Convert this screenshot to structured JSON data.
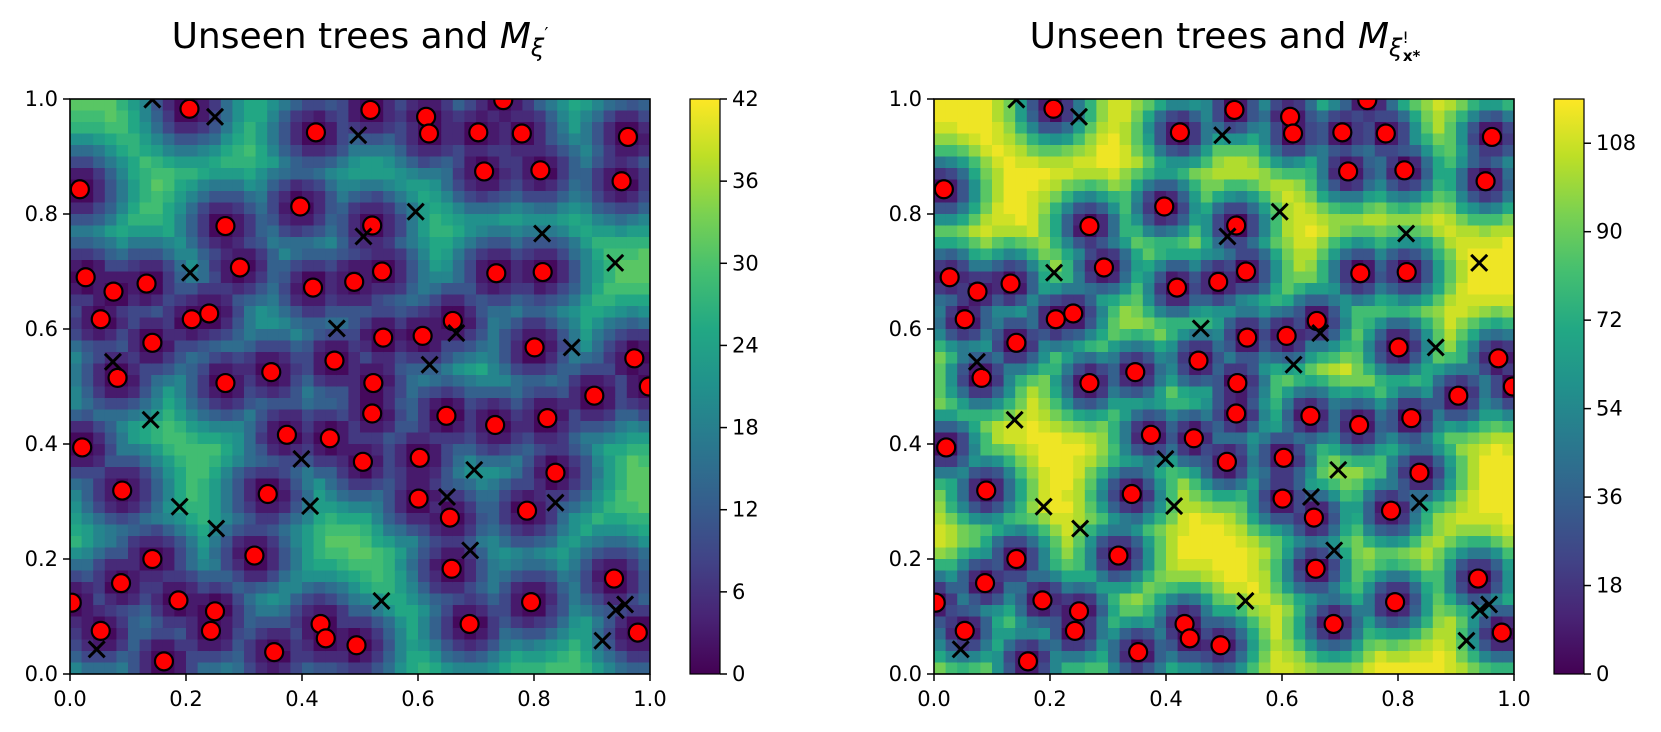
{
  "figure": {
    "left_title": "Unseen trees and Mξ′",
    "right_title": "Unseen trees and Mξ!x*"
  },
  "chart_data": [
    {
      "type": "contourf+scatter",
      "title": "Unseen trees and Mξ′",
      "title_parts": {
        "prefix": "Unseen trees and ",
        "var": "M",
        "sub": "ξ",
        "sup": "′"
      },
      "xlim": [
        0.0,
        1.0
      ],
      "ylim": [
        0.0,
        1.0
      ],
      "xticks": [
        "0.0",
        "0.2",
        "0.4",
        "0.6",
        "0.8",
        "1.0"
      ],
      "yticks": [
        "0.0",
        "0.2",
        "0.4",
        "0.6",
        "0.8",
        "1.0"
      ],
      "colorbar": {
        "cmap": "viridis",
        "range": [
          0,
          42
        ],
        "ticks": [
          "0",
          "6",
          "12",
          "18",
          "24",
          "30",
          "36",
          "42"
        ],
        "levels": 21
      },
      "field": {
        "near_value": 0,
        "far_value": 33,
        "decay_radius": 0.06
      }
    },
    {
      "type": "contourf+scatter",
      "title": "Unseen trees and Mξ!x*",
      "title_parts": {
        "prefix": "Unseen trees and ",
        "var": "M",
        "sub": "ξ",
        "subsub": "x*",
        "sup": "!"
      },
      "xlim": [
        0.0,
        1.0
      ],
      "ylim": [
        0.0,
        1.0
      ],
      "xticks": [
        "0.0",
        "0.2",
        "0.4",
        "0.6",
        "0.8",
        "1.0"
      ],
      "yticks": [
        "0.0",
        "0.2",
        "0.4",
        "0.6",
        "0.8",
        "1.0"
      ],
      "colorbar": {
        "cmap": "viridis",
        "range": [
          0,
          117
        ],
        "ticks": [
          "0",
          "18",
          "36",
          "54",
          "72",
          "90",
          "108"
        ],
        "levels": 21
      },
      "field": {
        "near_value": 0,
        "far_value": 117,
        "decay_radius": 0.045
      }
    }
  ],
  "trees": [
    [
      0.017,
      0.843
    ],
    [
      0.021,
      0.394
    ],
    [
      0.003,
      0.124
    ],
    [
      0.027,
      0.69
    ],
    [
      0.053,
      0.617
    ],
    [
      0.075,
      0.665
    ],
    [
      0.082,
      0.515
    ],
    [
      0.09,
      0.319
    ],
    [
      0.088,
      0.158
    ],
    [
      0.053,
      0.075
    ],
    [
      0.132,
      0.679
    ],
    [
      0.142,
      0.576
    ],
    [
      0.142,
      0.2
    ],
    [
      0.162,
      0.022
    ],
    [
      0.187,
      0.128
    ],
    [
      0.206,
      0.983
    ],
    [
      0.21,
      0.617
    ],
    [
      0.24,
      0.627
    ],
    [
      0.243,
      0.075
    ],
    [
      0.25,
      0.109
    ],
    [
      0.268,
      0.779
    ],
    [
      0.268,
      0.506
    ],
    [
      0.293,
      0.707
    ],
    [
      0.318,
      0.206
    ],
    [
      0.341,
      0.313
    ],
    [
      0.347,
      0.525
    ],
    [
      0.352,
      0.038
    ],
    [
      0.374,
      0.416
    ],
    [
      0.397,
      0.813
    ],
    [
      0.419,
      0.672
    ],
    [
      0.424,
      0.942
    ],
    [
      0.432,
      0.087
    ],
    [
      0.441,
      0.062
    ],
    [
      0.448,
      0.41
    ],
    [
      0.456,
      0.545
    ],
    [
      0.49,
      0.682
    ],
    [
      0.494,
      0.05
    ],
    [
      0.505,
      0.369
    ],
    [
      0.518,
      0.981
    ],
    [
      0.521,
      0.78
    ],
    [
      0.523,
      0.506
    ],
    [
      0.521,
      0.453
    ],
    [
      0.538,
      0.7
    ],
    [
      0.54,
      0.585
    ],
    [
      0.601,
      0.305
    ],
    [
      0.603,
      0.376
    ],
    [
      0.608,
      0.588
    ],
    [
      0.614,
      0.969
    ],
    [
      0.619,
      0.94
    ],
    [
      0.649,
      0.449
    ],
    [
      0.655,
      0.272
    ],
    [
      0.658,
      0.183
    ],
    [
      0.66,
      0.614
    ],
    [
      0.689,
      0.087
    ],
    [
      0.704,
      0.942
    ],
    [
      0.714,
      0.874
    ],
    [
      0.733,
      0.433
    ],
    [
      0.735,
      0.697
    ],
    [
      0.747,
      0.998
    ],
    [
      0.779,
      0.94
    ],
    [
      0.788,
      0.284
    ],
    [
      0.795,
      0.125
    ],
    [
      0.801,
      0.568
    ],
    [
      0.811,
      0.876
    ],
    [
      0.815,
      0.699
    ],
    [
      0.823,
      0.445
    ],
    [
      0.837,
      0.35
    ],
    [
      0.904,
      0.484
    ],
    [
      0.938,
      0.166
    ],
    [
      0.951,
      0.857
    ],
    [
      0.962,
      0.934
    ],
    [
      0.973,
      0.549
    ],
    [
      0.979,
      0.072
    ],
    [
      0.998,
      0.5
    ]
  ],
  "unseen": [
    [
      0.142,
      0.999
    ],
    [
      0.25,
      0.969
    ],
    [
      0.497,
      0.937
    ],
    [
      0.596,
      0.804
    ],
    [
      0.814,
      0.766
    ],
    [
      0.506,
      0.761
    ],
    [
      0.207,
      0.698
    ],
    [
      0.94,
      0.715
    ],
    [
      0.074,
      0.543
    ],
    [
      0.46,
      0.601
    ],
    [
      0.666,
      0.593
    ],
    [
      0.62,
      0.538
    ],
    [
      0.865,
      0.568
    ],
    [
      0.139,
      0.442
    ],
    [
      0.399,
      0.374
    ],
    [
      0.697,
      0.355
    ],
    [
      0.189,
      0.291
    ],
    [
      0.414,
      0.292
    ],
    [
      0.65,
      0.308
    ],
    [
      0.837,
      0.298
    ],
    [
      0.252,
      0.253
    ],
    [
      0.69,
      0.215
    ],
    [
      0.537,
      0.127
    ],
    [
      0.046,
      0.043
    ],
    [
      0.918,
      0.058
    ],
    [
      0.941,
      0.111
    ],
    [
      0.957,
      0.121
    ]
  ]
}
